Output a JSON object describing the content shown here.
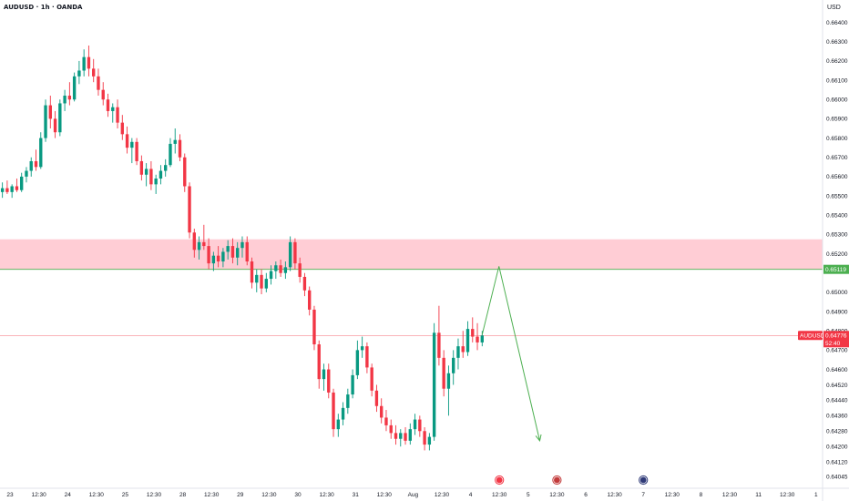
{
  "header": {
    "symbol_title": "AUDUSD · 1h · OANDA",
    "currency": "USD"
  },
  "colors": {
    "up": "#089981",
    "down": "#f23645",
    "zone": "#ffcdd5",
    "projection": "#4caf50",
    "price_tag": "#f23645",
    "level_tag": "#4caf50"
  },
  "chart_data": {
    "type": "candlestick",
    "symbol": "AUDUSD",
    "timeframe": "1h",
    "source": "OANDA",
    "y_ticks": [
      "0.66400",
      "0.66300",
      "0.66200",
      "0.66100",
      "0.66000",
      "0.65900",
      "0.65800",
      "0.65700",
      "0.65600",
      "0.65500",
      "0.65400",
      "0.65300",
      "0.65200",
      "0.65000",
      "0.64900",
      "0.64800",
      "0.64700",
      "0.64600",
      "0.64520",
      "0.64440",
      "0.64360",
      "0.64280",
      "0.64200",
      "0.64120",
      "0.64045"
    ],
    "ylim": [
      0.64045,
      0.6645
    ],
    "x_ticks": [
      "23",
      "12:30",
      "24",
      "12:30",
      "25",
      "12:30",
      "28",
      "12:30",
      "29",
      "12:30",
      "30",
      "12:30",
      "31",
      "12:30",
      "Aug",
      "12:30",
      "4",
      "12:30",
      "5",
      "12:30",
      "6",
      "12:30",
      "7",
      "12:30",
      "8",
      "12:30",
      "11",
      "12:30",
      "1"
    ],
    "current_price": {
      "symbol": "AUDUSD",
      "value": "0.64776",
      "countdown": "52:40",
      "numeric": 0.64776
    },
    "level": {
      "value": "0.65119",
      "numeric": 0.65119
    },
    "resistance_zone": {
      "from": 0.65119,
      "to": 0.65275
    },
    "projection": {
      "points": [
        {
          "bar": 100,
          "price": 0.6478
        },
        {
          "bar": 103.5,
          "price": 0.65135
        },
        {
          "bar": 112,
          "price": 0.6423
        }
      ]
    },
    "events": [
      {
        "tick_index": 17,
        "icon": "lightning-icon",
        "glyph": "⚡"
      },
      {
        "tick_index": 19,
        "icon": "us-flag-icon",
        "glyph": "🇺🇸"
      },
      {
        "tick_index": 22,
        "icon": "au-flag-icon",
        "glyph": "🇦🇺"
      }
    ],
    "bars_per_tick": 6,
    "candles": [
      {
        "o": 0.6552,
        "h": 0.6557,
        "l": 0.6549,
        "c": 0.6554
      },
      {
        "o": 0.6554,
        "h": 0.6558,
        "l": 0.6551,
        "c": 0.6552
      },
      {
        "o": 0.6552,
        "h": 0.6556,
        "l": 0.6549,
        "c": 0.6555
      },
      {
        "o": 0.6555,
        "h": 0.6559,
        "l": 0.6552,
        "c": 0.6553
      },
      {
        "o": 0.6553,
        "h": 0.6562,
        "l": 0.6552,
        "c": 0.656
      },
      {
        "o": 0.656,
        "h": 0.6565,
        "l": 0.6557,
        "c": 0.6563
      },
      {
        "o": 0.6563,
        "h": 0.657,
        "l": 0.656,
        "c": 0.6568
      },
      {
        "o": 0.6568,
        "h": 0.6574,
        "l": 0.6563,
        "c": 0.6565
      },
      {
        "o": 0.6565,
        "h": 0.6583,
        "l": 0.6564,
        "c": 0.658
      },
      {
        "o": 0.658,
        "h": 0.66,
        "l": 0.6578,
        "c": 0.6597
      },
      {
        "o": 0.6597,
        "h": 0.6602,
        "l": 0.6585,
        "c": 0.659
      },
      {
        "o": 0.659,
        "h": 0.6594,
        "l": 0.658,
        "c": 0.6583
      },
      {
        "o": 0.6583,
        "h": 0.66,
        "l": 0.6581,
        "c": 0.6598
      },
      {
        "o": 0.6598,
        "h": 0.6605,
        "l": 0.6594,
        "c": 0.6602
      },
      {
        "o": 0.6602,
        "h": 0.6609,
        "l": 0.6597,
        "c": 0.66
      },
      {
        "o": 0.66,
        "h": 0.6614,
        "l": 0.6599,
        "c": 0.6612
      },
      {
        "o": 0.6612,
        "h": 0.662,
        "l": 0.6608,
        "c": 0.6615
      },
      {
        "o": 0.6615,
        "h": 0.6626,
        "l": 0.6612,
        "c": 0.6622
      },
      {
        "o": 0.6622,
        "h": 0.6628,
        "l": 0.6612,
        "c": 0.6616
      },
      {
        "o": 0.6616,
        "h": 0.6621,
        "l": 0.6609,
        "c": 0.6612
      },
      {
        "o": 0.6612,
        "h": 0.6616,
        "l": 0.6602,
        "c": 0.6605
      },
      {
        "o": 0.6605,
        "h": 0.6609,
        "l": 0.6597,
        "c": 0.66
      },
      {
        "o": 0.66,
        "h": 0.6603,
        "l": 0.6591,
        "c": 0.6594
      },
      {
        "o": 0.6594,
        "h": 0.6598,
        "l": 0.6588,
        "c": 0.6596
      },
      {
        "o": 0.6596,
        "h": 0.66,
        "l": 0.6585,
        "c": 0.6588
      },
      {
        "o": 0.6588,
        "h": 0.6592,
        "l": 0.6579,
        "c": 0.6582
      },
      {
        "o": 0.6582,
        "h": 0.6586,
        "l": 0.6572,
        "c": 0.6575
      },
      {
        "o": 0.6575,
        "h": 0.658,
        "l": 0.6567,
        "c": 0.6578
      },
      {
        "o": 0.6578,
        "h": 0.658,
        "l": 0.6566,
        "c": 0.6568
      },
      {
        "o": 0.6568,
        "h": 0.6571,
        "l": 0.6558,
        "c": 0.6561
      },
      {
        "o": 0.6561,
        "h": 0.6567,
        "l": 0.6555,
        "c": 0.6564
      },
      {
        "o": 0.6564,
        "h": 0.6568,
        "l": 0.6553,
        "c": 0.6556
      },
      {
        "o": 0.6556,
        "h": 0.6561,
        "l": 0.6551,
        "c": 0.6559
      },
      {
        "o": 0.6559,
        "h": 0.6566,
        "l": 0.6556,
        "c": 0.6563
      },
      {
        "o": 0.6563,
        "h": 0.6569,
        "l": 0.656,
        "c": 0.6566
      },
      {
        "o": 0.6566,
        "h": 0.658,
        "l": 0.6565,
        "c": 0.6577
      },
      {
        "o": 0.6577,
        "h": 0.6585,
        "l": 0.6572,
        "c": 0.6579
      },
      {
        "o": 0.6579,
        "h": 0.6582,
        "l": 0.6568,
        "c": 0.657
      },
      {
        "o": 0.657,
        "h": 0.6572,
        "l": 0.6552,
        "c": 0.6555
      },
      {
        "o": 0.6555,
        "h": 0.6557,
        "l": 0.6528,
        "c": 0.6531
      },
      {
        "o": 0.6531,
        "h": 0.6533,
        "l": 0.6518,
        "c": 0.6522
      },
      {
        "o": 0.6522,
        "h": 0.6529,
        "l": 0.6517,
        "c": 0.6526
      },
      {
        "o": 0.6526,
        "h": 0.6535,
        "l": 0.6522,
        "c": 0.6524
      },
      {
        "o": 0.6524,
        "h": 0.6528,
        "l": 0.6512,
        "c": 0.6515
      },
      {
        "o": 0.6515,
        "h": 0.6521,
        "l": 0.6511,
        "c": 0.6519
      },
      {
        "o": 0.6519,
        "h": 0.6524,
        "l": 0.6513,
        "c": 0.6516
      },
      {
        "o": 0.6516,
        "h": 0.6523,
        "l": 0.6513,
        "c": 0.6521
      },
      {
        "o": 0.6521,
        "h": 0.6527,
        "l": 0.6517,
        "c": 0.6524
      },
      {
        "o": 0.6524,
        "h": 0.6528,
        "l": 0.6515,
        "c": 0.6518
      },
      {
        "o": 0.6518,
        "h": 0.6526,
        "l": 0.6514,
        "c": 0.6523
      },
      {
        "o": 0.6523,
        "h": 0.6529,
        "l": 0.6518,
        "c": 0.6526
      },
      {
        "o": 0.6526,
        "h": 0.6529,
        "l": 0.6514,
        "c": 0.6516
      },
      {
        "o": 0.6516,
        "h": 0.6518,
        "l": 0.6502,
        "c": 0.6505
      },
      {
        "o": 0.6505,
        "h": 0.6512,
        "l": 0.65,
        "c": 0.6509
      },
      {
        "o": 0.6509,
        "h": 0.6512,
        "l": 0.6499,
        "c": 0.6502
      },
      {
        "o": 0.6502,
        "h": 0.651,
        "l": 0.65,
        "c": 0.6507
      },
      {
        "o": 0.6507,
        "h": 0.6514,
        "l": 0.6504,
        "c": 0.6511
      },
      {
        "o": 0.6511,
        "h": 0.6516,
        "l": 0.6507,
        "c": 0.6514
      },
      {
        "o": 0.6514,
        "h": 0.6517,
        "l": 0.6508,
        "c": 0.651
      },
      {
        "o": 0.651,
        "h": 0.6516,
        "l": 0.6507,
        "c": 0.6513
      },
      {
        "o": 0.6513,
        "h": 0.6529,
        "l": 0.6511,
        "c": 0.6526
      },
      {
        "o": 0.6526,
        "h": 0.6528,
        "l": 0.6512,
        "c": 0.6515
      },
      {
        "o": 0.6515,
        "h": 0.6518,
        "l": 0.6505,
        "c": 0.6508
      },
      {
        "o": 0.6508,
        "h": 0.651,
        "l": 0.6498,
        "c": 0.6501
      },
      {
        "o": 0.6501,
        "h": 0.6503,
        "l": 0.6488,
        "c": 0.6491
      },
      {
        "o": 0.6491,
        "h": 0.6493,
        "l": 0.647,
        "c": 0.6473
      },
      {
        "o": 0.6473,
        "h": 0.6475,
        "l": 0.645,
        "c": 0.6455
      },
      {
        "o": 0.6455,
        "h": 0.6463,
        "l": 0.6449,
        "c": 0.646
      },
      {
        "o": 0.646,
        "h": 0.6463,
        "l": 0.6445,
        "c": 0.6448
      },
      {
        "o": 0.6448,
        "h": 0.645,
        "l": 0.6425,
        "c": 0.6429
      },
      {
        "o": 0.6429,
        "h": 0.6437,
        "l": 0.6425,
        "c": 0.6434
      },
      {
        "o": 0.6434,
        "h": 0.6443,
        "l": 0.6431,
        "c": 0.644
      },
      {
        "o": 0.644,
        "h": 0.645,
        "l": 0.6437,
        "c": 0.6447
      },
      {
        "o": 0.6447,
        "h": 0.646,
        "l": 0.6445,
        "c": 0.6457
      },
      {
        "o": 0.6457,
        "h": 0.6475,
        "l": 0.6455,
        "c": 0.647
      },
      {
        "o": 0.647,
        "h": 0.6477,
        "l": 0.6466,
        "c": 0.6472
      },
      {
        "o": 0.6472,
        "h": 0.6474,
        "l": 0.6458,
        "c": 0.6461
      },
      {
        "o": 0.6461,
        "h": 0.6463,
        "l": 0.6446,
        "c": 0.6449
      },
      {
        "o": 0.6449,
        "h": 0.6452,
        "l": 0.6438,
        "c": 0.6441
      },
      {
        "o": 0.6441,
        "h": 0.6445,
        "l": 0.6432,
        "c": 0.6435
      },
      {
        "o": 0.6435,
        "h": 0.6439,
        "l": 0.6428,
        "c": 0.6431
      },
      {
        "o": 0.6431,
        "h": 0.6434,
        "l": 0.6424,
        "c": 0.6427
      },
      {
        "o": 0.6427,
        "h": 0.6431,
        "l": 0.6421,
        "c": 0.6424
      },
      {
        "o": 0.6424,
        "h": 0.6429,
        "l": 0.642,
        "c": 0.6427
      },
      {
        "o": 0.6427,
        "h": 0.643,
        "l": 0.6421,
        "c": 0.6423
      },
      {
        "o": 0.6423,
        "h": 0.6432,
        "l": 0.6421,
        "c": 0.6429
      },
      {
        "o": 0.6429,
        "h": 0.6437,
        "l": 0.6426,
        "c": 0.6434
      },
      {
        "o": 0.6434,
        "h": 0.6436,
        "l": 0.6425,
        "c": 0.6428
      },
      {
        "o": 0.6428,
        "h": 0.643,
        "l": 0.6418,
        "c": 0.6421
      },
      {
        "o": 0.6421,
        "h": 0.6427,
        "l": 0.6418,
        "c": 0.6425
      },
      {
        "o": 0.6425,
        "h": 0.6484,
        "l": 0.6423,
        "c": 0.6479
      },
      {
        "o": 0.6479,
        "h": 0.6493,
        "l": 0.6462,
        "c": 0.6466
      },
      {
        "o": 0.6466,
        "h": 0.647,
        "l": 0.6446,
        "c": 0.645
      },
      {
        "o": 0.645,
        "h": 0.6462,
        "l": 0.6436,
        "c": 0.6458
      },
      {
        "o": 0.6458,
        "h": 0.647,
        "l": 0.6452,
        "c": 0.6466
      },
      {
        "o": 0.6466,
        "h": 0.6476,
        "l": 0.646,
        "c": 0.6472
      },
      {
        "o": 0.6472,
        "h": 0.648,
        "l": 0.6466,
        "c": 0.6469
      },
      {
        "o": 0.6469,
        "h": 0.6485,
        "l": 0.6467,
        "c": 0.6481
      },
      {
        "o": 0.6481,
        "h": 0.6487,
        "l": 0.6474,
        "c": 0.6477
      },
      {
        "o": 0.6477,
        "h": 0.6484,
        "l": 0.647,
        "c": 0.6474
      },
      {
        "o": 0.6474,
        "h": 0.648,
        "l": 0.6472,
        "c": 0.64776
      }
    ]
  }
}
